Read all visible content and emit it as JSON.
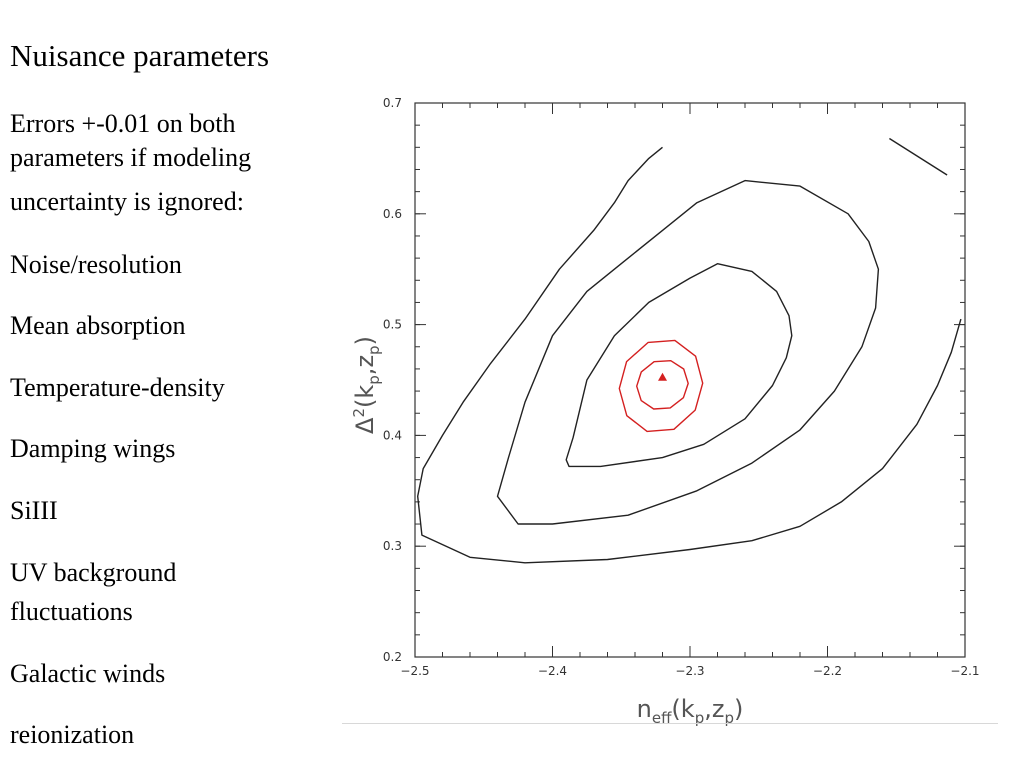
{
  "slide": {
    "title": "Nuisance parameters",
    "intro_lines": [
      "Errors +-0.01 on both",
      "parameters if modeling",
      "uncertainty is ignored:"
    ],
    "items": [
      {
        "lines": [
          "Noise/resolution"
        ]
      },
      {
        "lines": [
          "Mean absorption"
        ]
      },
      {
        "lines": [
          "Temperature-density"
        ]
      },
      {
        "lines": [
          "Damping wings"
        ]
      },
      {
        "lines": [
          "SiIII"
        ]
      },
      {
        "lines": [
          "UV background",
          "fluctuations"
        ]
      },
      {
        "lines": [
          "Galactic winds"
        ]
      },
      {
        "lines": [
          "reionization"
        ]
      }
    ]
  },
  "chart_data": {
    "type": "contour",
    "xlabel": "n_eff(k_p,z_p)",
    "ylabel": "Δ²(k_p,z_p)",
    "xlim": [
      -2.5,
      -2.1
    ],
    "ylim": [
      0.2,
      0.7
    ],
    "x_ticks": [
      -2.5,
      -2.4,
      -2.3,
      -2.2,
      -2.1
    ],
    "y_ticks": [
      0.2,
      0.3,
      0.4,
      0.5,
      0.6,
      0.7
    ],
    "x_tick_labels": [
      "−2.5",
      "−2.4",
      "−2.3",
      "−2.2",
      "−2.1"
    ],
    "y_tick_labels": [
      "0.2",
      "0.3",
      "0.4",
      "0.5",
      "0.6",
      "0.7"
    ],
    "best_fit": {
      "x": -2.32,
      "y": 0.452,
      "color": "#d42020"
    },
    "contours": [
      {
        "color": "#d42020",
        "closed": true,
        "points": [
          [
            -2.3388,
            0.4444
          ],
          [
            -2.3355,
            0.4314
          ],
          [
            -2.3264,
            0.4238
          ],
          [
            -2.3144,
            0.4248
          ],
          [
            -2.3048,
            0.434
          ],
          [
            -2.3013,
            0.4469
          ],
          [
            -2.3046,
            0.4599
          ],
          [
            -2.314,
            0.4674
          ],
          [
            -2.3261,
            0.4665
          ],
          [
            -2.3354,
            0.4573
          ]
        ]
      },
      {
        "color": "#d42020",
        "closed": true,
        "points": [
          [
            -2.3514,
            0.4423
          ],
          [
            -2.346,
            0.4178
          ],
          [
            -2.3312,
            0.4036
          ],
          [
            -2.3117,
            0.4055
          ],
          [
            -2.2962,
            0.4228
          ],
          [
            -2.2908,
            0.4471
          ],
          [
            -2.2959,
            0.4715
          ],
          [
            -2.311,
            0.4857
          ],
          [
            -2.3304,
            0.4839
          ],
          [
            -2.3461,
            0.4666
          ]
        ]
      },
      {
        "color": "#222222",
        "closed": true,
        "points": [
          [
            -2.39,
            0.378
          ],
          [
            -2.385,
            0.398
          ],
          [
            -2.375,
            0.45
          ],
          [
            -2.355,
            0.49
          ],
          [
            -2.33,
            0.52
          ],
          [
            -2.3,
            0.542
          ],
          [
            -2.28,
            0.555
          ],
          [
            -2.255,
            0.548
          ],
          [
            -2.237,
            0.53
          ],
          [
            -2.228,
            0.508
          ],
          [
            -2.226,
            0.49
          ],
          [
            -2.23,
            0.47
          ],
          [
            -2.24,
            0.445
          ],
          [
            -2.26,
            0.415
          ],
          [
            -2.29,
            0.392
          ],
          [
            -2.32,
            0.38
          ],
          [
            -2.365,
            0.372
          ],
          [
            -2.388,
            0.372
          ]
        ]
      },
      {
        "color": "#222222",
        "closed": true,
        "points": [
          [
            -2.44,
            0.345
          ],
          [
            -2.432,
            0.38
          ],
          [
            -2.42,
            0.43
          ],
          [
            -2.4,
            0.49
          ],
          [
            -2.375,
            0.53
          ],
          [
            -2.35,
            0.555
          ],
          [
            -2.32,
            0.585
          ],
          [
            -2.295,
            0.61
          ],
          [
            -2.26,
            0.63
          ],
          [
            -2.22,
            0.625
          ],
          [
            -2.185,
            0.6
          ],
          [
            -2.17,
            0.575
          ],
          [
            -2.163,
            0.55
          ],
          [
            -2.165,
            0.515
          ],
          [
            -2.175,
            0.48
          ],
          [
            -2.195,
            0.44
          ],
          [
            -2.22,
            0.405
          ],
          [
            -2.255,
            0.375
          ],
          [
            -2.295,
            0.35
          ],
          [
            -2.345,
            0.328
          ],
          [
            -2.4,
            0.32
          ],
          [
            -2.425,
            0.32
          ]
        ]
      },
      {
        "color": "#222222",
        "closed": false,
        "points": [
          [
            -2.32,
            0.66
          ],
          [
            -2.33,
            0.65
          ],
          [
            -2.345,
            0.63
          ],
          [
            -2.355,
            0.61
          ],
          [
            -2.37,
            0.585
          ],
          [
            -2.395,
            0.55
          ],
          [
            -2.42,
            0.505
          ],
          [
            -2.445,
            0.465
          ],
          [
            -2.465,
            0.43
          ],
          [
            -2.48,
            0.4
          ],
          [
            -2.494,
            0.37
          ],
          [
            -2.498,
            0.345
          ],
          [
            -2.495,
            0.31
          ],
          [
            -2.46,
            0.29
          ],
          [
            -2.42,
            0.285
          ],
          [
            -2.36,
            0.288
          ],
          [
            -2.3,
            0.297
          ],
          [
            -2.255,
            0.305
          ],
          [
            -2.22,
            0.318
          ],
          [
            -2.19,
            0.34
          ],
          [
            -2.16,
            0.37
          ],
          [
            -2.135,
            0.41
          ],
          [
            -2.12,
            0.445
          ],
          [
            -2.11,
            0.475
          ],
          [
            -2.103,
            0.505
          ]
        ]
      },
      {
        "color": "#222222",
        "closed": false,
        "points": [
          [
            -2.155,
            0.668
          ],
          [
            -2.113,
            0.635
          ]
        ]
      }
    ]
  }
}
